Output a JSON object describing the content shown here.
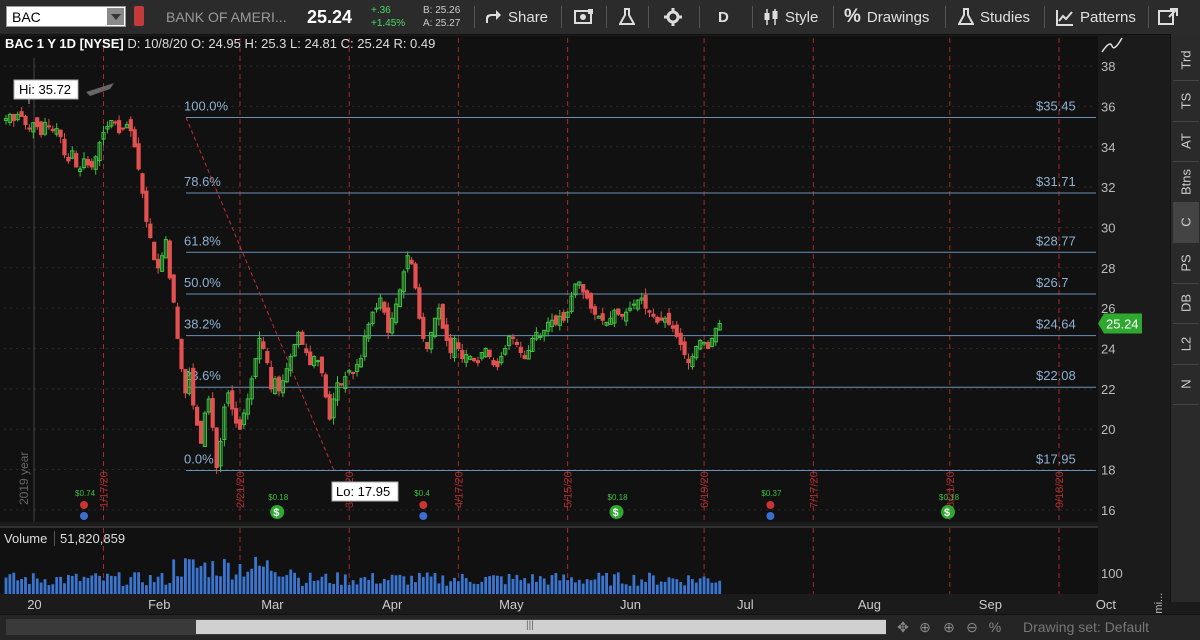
{
  "toolbar": {
    "symbol": "BAC",
    "company": "BANK OF AMERI...",
    "last": "25.24",
    "change": "+.36",
    "change_pct": "+1.45%",
    "bid": "B: 25.26",
    "ask": "A: 25.27",
    "share_label": "Share",
    "aggregation_label": "D",
    "style_label": "Style",
    "drawings_label": "Drawings",
    "studies_label": "Studies",
    "patterns_label": "Patterns"
  },
  "info_line": {
    "symbol_desc": "BAC 1 Y 1D [NYSE]",
    "date": "D: 10/8/20",
    "open": "O: 24.95",
    "high": "H: 25.3",
    "low": "L: 24.81",
    "close": "C: 25.24",
    "range": "R: 0.49"
  },
  "chart_data": {
    "type": "candlestick",
    "y_range": [
      15.4,
      38.4
    ],
    "y_ticks": [
      16,
      18,
      20,
      22,
      24,
      26,
      28,
      30,
      32,
      34,
      36,
      38
    ],
    "x_labels": [
      "20",
      "Feb",
      "Mar",
      "Apr",
      "May",
      "Jun",
      "Jul",
      "Aug",
      "Sep",
      "Oct"
    ],
    "x_label_days": [
      8,
      39,
      68,
      99,
      129,
      160,
      190,
      221,
      252,
      282
    ],
    "event_lines": [
      {
        "label": "1/17/20",
        "day": 25
      },
      {
        "label": "2/21/20",
        "day": 60
      },
      {
        "label": "3/20/20",
        "day": 88
      },
      {
        "label": "4/17/20",
        "day": 116
      },
      {
        "label": "5/15/20",
        "day": 144
      },
      {
        "label": "6/19/20",
        "day": 179
      },
      {
        "label": "7/17/20",
        "day": 207
      },
      {
        "label": "8/21/20",
        "day": 242
      },
      {
        "label": "9/18/20",
        "day": 270
      }
    ],
    "year_marker": "2019 year",
    "fib_levels": [
      {
        "pct": "100.0%",
        "value": 35.45,
        "label": "$35.45"
      },
      {
        "pct": "78.6%",
        "value": 31.71,
        "label": "$31.71"
      },
      {
        "pct": "61.8%",
        "value": 28.77,
        "label": "$28.77"
      },
      {
        "pct": "50.0%",
        "value": 26.7,
        "label": "$26.7"
      },
      {
        "pct": "38.2%",
        "value": 24.64,
        "label": "$24.64"
      },
      {
        "pct": "23.6%",
        "value": 22.08,
        "label": "$22.08"
      },
      {
        "pct": "0.0%",
        "value": 17.95,
        "label": "$17.95"
      }
    ],
    "hi_label": "Hi: 35.72",
    "lo_label": "Lo: 17.95",
    "last_price": "25.24",
    "dividend_label": "$0.18",
    "earnings_labels": [
      "$0.74",
      "$0.4",
      "$0.37"
    ],
    "closes": [
      35.4,
      35.6,
      35.3,
      35.6,
      35.5,
      35.1,
      34.9,
      35.2,
      35.0,
      34.6,
      35.2,
      35.0,
      34.8,
      34.9,
      34.5,
      33.6,
      33.3,
      33.8,
      33.0,
      32.9,
      33.4,
      33.1,
      33.0,
      33.5,
      34.2,
      34.7,
      35.0,
      35.3,
      35.2,
      34.7,
      34.9,
      35.1,
      34.8,
      34.0,
      32.9,
      31.7,
      30.3,
      29.5,
      28.4,
      28.0,
      28.6,
      29.4,
      27.5,
      26.3,
      24.5,
      23.0,
      21.8,
      22.8,
      21.2,
      20.2,
      19.3,
      20.8,
      21.5,
      20.1,
      18.1,
      19.4,
      21.1,
      21.8,
      21.0,
      20.3,
      20.0,
      20.8,
      21.5,
      22.5,
      23.5,
      24.5,
      24.0,
      23.3,
      22.0,
      22.5,
      21.9,
      22.4,
      23.0,
      23.6,
      24.2,
      24.8,
      24.2,
      23.8,
      23.2,
      23.6,
      23.4,
      22.8,
      21.6,
      20.5,
      21.5,
      22.3,
      22.2,
      22.6,
      22.9,
      22.8,
      23.2,
      23.5,
      24.6,
      25.2,
      25.8,
      26.0,
      26.5,
      25.8,
      24.8,
      25.5,
      26.2,
      26.9,
      27.8,
      28.6,
      28.2,
      27.0,
      25.5,
      24.5,
      24.0,
      24.8,
      25.5,
      26.0,
      25.0,
      24.4,
      23.8,
      24.5,
      24.0,
      23.5,
      23.7,
      23.6,
      23.4,
      23.3,
      23.8,
      24.0,
      23.6,
      23.2,
      23.1,
      23.6,
      24.0,
      24.6,
      24.5,
      24.2,
      23.8,
      23.5,
      23.9,
      24.5,
      24.8,
      24.6,
      24.9,
      25.3,
      25.4,
      25.2,
      25.6,
      25.4,
      25.8,
      26.6,
      27.2,
      27.3,
      26.8,
      26.5,
      26.0,
      25.7,
      25.6,
      25.4,
      25.3,
      25.5,
      25.9,
      25.7,
      25.6,
      25.8,
      26.0,
      26.2,
      26.4,
      26.5,
      26.0,
      25.8,
      25.6,
      25.3,
      25.4,
      25.5,
      25.2,
      25.0,
      24.6,
      24.2,
      23.7,
      23.3,
      23.6,
      24.1,
      24.4,
      24.3,
      24.0,
      24.5,
      25.0,
      25.24
    ]
  },
  "volume": {
    "label": "Volume",
    "value": "51,820,859",
    "axis_label": "100",
    "unit": "<mi..."
  },
  "right_tabs": [
    "Trd",
    "TS",
    "AT",
    "Btns",
    "C",
    "PS",
    "DB",
    "L2",
    "N"
  ],
  "bottom": {
    "drawing_set": "Drawing set: Default"
  }
}
